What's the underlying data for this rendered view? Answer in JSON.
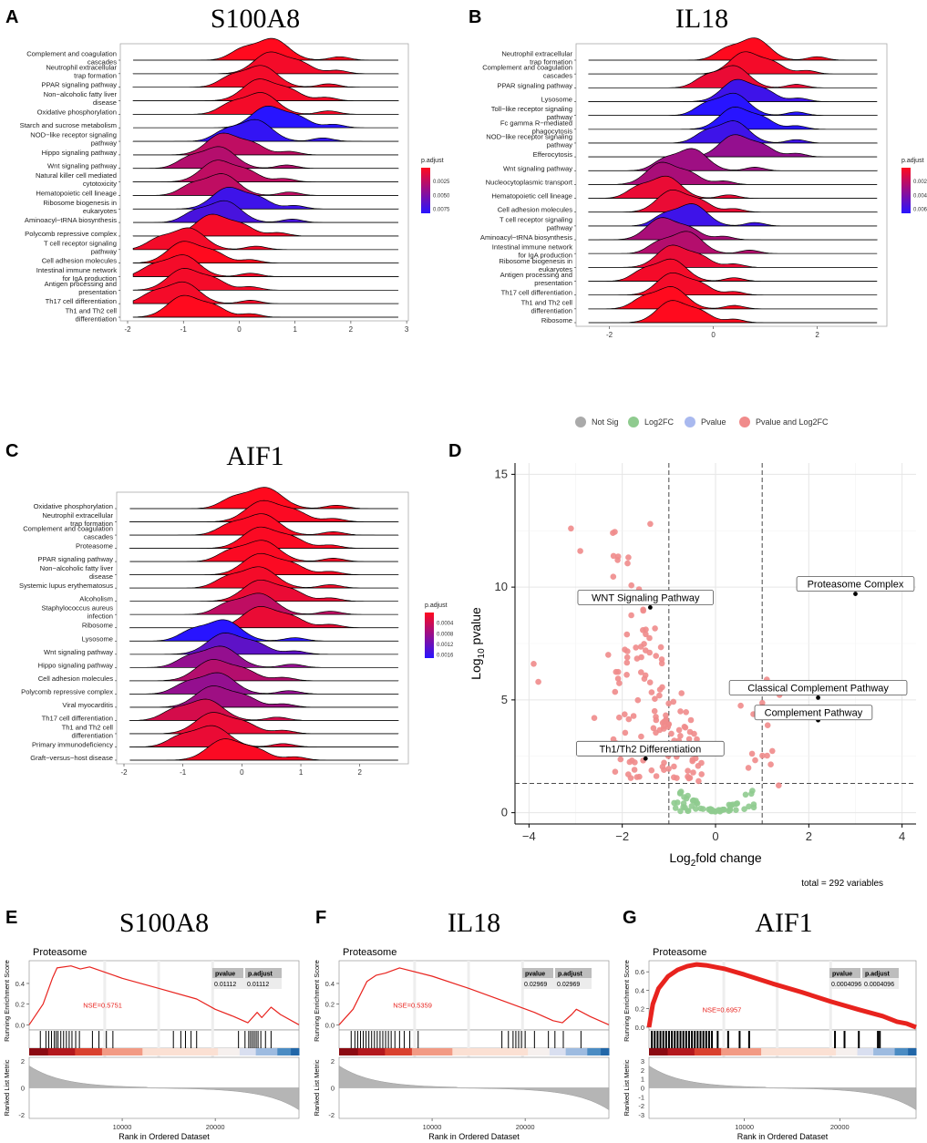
{
  "figure": {
    "panels": [
      {
        "id": "A",
        "label": "A",
        "title": "S100A8"
      },
      {
        "id": "B",
        "label": "B",
        "title": "IL18"
      },
      {
        "id": "C",
        "label": "C",
        "title": "AIF1"
      },
      {
        "id": "D",
        "label": "D",
        "title": ""
      },
      {
        "id": "E",
        "label": "E",
        "title": "S100A8"
      },
      {
        "id": "F",
        "label": "F",
        "title": "IL18"
      },
      {
        "id": "G",
        "label": "G",
        "title": "AIF1"
      }
    ]
  },
  "chart_data": [
    {
      "id": "A",
      "type": "ridgeline",
      "title": "S100A8",
      "xticks": [
        -2,
        -1,
        0,
        1,
        2,
        3
      ],
      "xlim": [
        -2,
        2.9
      ],
      "legend": {
        "title": "p.adjust",
        "ticks": [
          "0.0025",
          "0.0050",
          "0.0075"
        ]
      },
      "categories": [
        "Complement and coagulation\ncascades",
        "Neutrophil extracellular\ntrap formation",
        "PPAR signaling pathway",
        "Non−alcoholic fatty liver\ndisease",
        "Oxidative phosphorylation",
        "Starch and sucrose metabolism",
        "NOD−like receptor signaling\npathway",
        "Hippo signaling pathway",
        "Wnt signaling pathway",
        "Natural killer cell mediated\ncytotoxicity",
        "Hematopoietic cell lineage",
        "Ribosome biogenesis in\neukaryotes",
        "Aminoacyl−tRNA biosynthesis",
        "Polycomb repressive complex",
        "T cell receptor signaling\npathway",
        "Cell adhesion molecules",
        "Intestinal immune network\nfor IgA production",
        "Antigen processing and\npresentation",
        "Th17 cell differentiation",
        "Th1 and Th2 cell\ndifferentiation"
      ],
      "peaks": [
        0.6,
        0.55,
        0.4,
        0.35,
        0.4,
        0.5,
        0.3,
        -0.3,
        -0.35,
        -0.4,
        -0.3,
        -0.2,
        -0.25,
        -0.5,
        -0.9,
        -1.0,
        -1.0,
        -1.0,
        -1.0,
        -1.0
      ],
      "pcolor": [
        0.0,
        0.05,
        0.05,
        0.05,
        0.05,
        1.0,
        0.95,
        0.3,
        0.35,
        0.3,
        0.3,
        0.9,
        0.85,
        0.05,
        0.05,
        0.0,
        0.05,
        0.05,
        0.05,
        0.0
      ]
    },
    {
      "id": "B",
      "type": "ridgeline",
      "title": "IL18",
      "xticks": [
        -2,
        0,
        2
      ],
      "xlim": [
        -2.5,
        3.2
      ],
      "legend": {
        "title": "p.adjust",
        "ticks": [
          "0.002",
          "0.004",
          "0.006"
        ]
      },
      "categories": [
        "Neutrophil extracellular\ntrap formation",
        "Complement and coagulation\ncascades",
        "PPAR signaling pathway",
        "Lysosome",
        "Toll−like receptor signaling\npathway",
        "Fc gamma R−mediated\nphagocytosis",
        "NOD−like receptor signaling\npathway",
        "Efferocytosis",
        "Wnt signaling pathway",
        "Nucleocytoplasmic transport",
        "Hematopoietic cell lineage",
        "Cell adhesion molecules",
        "T cell receptor signaling\npathway",
        "Aminoacyl−tRNA biosynthesis",
        "Intestinal immune network\nfor IgA production",
        "Ribosome biogenesis in\neukaryotes",
        "Antigen processing and\npresentation",
        "Th17 cell differentiation",
        "Th1 and Th2 cell\ndifferentiation",
        "Ribosome"
      ],
      "peaks": [
        0.8,
        0.6,
        0.4,
        0.45,
        0.4,
        0.4,
        0.4,
        0.4,
        -0.4,
        -1.0,
        -0.9,
        -0.8,
        -0.4,
        -1.0,
        -0.5,
        -0.8,
        -0.8,
        -0.8,
        -0.8,
        -0.8
      ],
      "pcolor": [
        0.0,
        0.05,
        0.1,
        0.9,
        1.0,
        1.0,
        0.9,
        0.5,
        0.45,
        0.4,
        0.1,
        0.1,
        0.9,
        0.4,
        0.35,
        0.1,
        0.05,
        0.05,
        0.0,
        0.0
      ]
    },
    {
      "id": "C",
      "type": "ridgeline",
      "title": "AIF1",
      "xticks": [
        -2,
        -1,
        0,
        1,
        2
      ],
      "xlim": [
        -2,
        2.7
      ],
      "legend": {
        "title": "p.adjust",
        "ticks": [
          "0.0004",
          "0.0008",
          "0.0012",
          "0.0016"
        ]
      },
      "categories": [
        "Oxidative phosphorylation",
        "Neutrophil extracellular\ntrap formation",
        "Complement and coagulation\ncascades",
        "Proteasome",
        "PPAR signaling pathway",
        "Non−alcoholic fatty liver\ndisease",
        "Systemic lupus erythematosus",
        "Alcoholism",
        "Staphylococcus aureus\ninfection",
        "Ribosome",
        "Lysosome",
        "Wnt signaling pathway",
        "Hippo signaling pathway",
        "Cell adhesion molecules",
        "Polycomb repressive complex",
        "Viral myocarditis",
        "Th17 cell differentiation",
        "Th1 and Th2 cell\ndifferentiation",
        "Primary immunodeficiency",
        "Graft−versus−host disease"
      ],
      "peaks": [
        0.4,
        0.35,
        0.35,
        0.3,
        0.35,
        0.3,
        0.3,
        0.3,
        0.3,
        0.3,
        -0.3,
        -0.3,
        -0.35,
        -0.5,
        -0.4,
        -0.5,
        -0.6,
        -0.5,
        -0.5,
        -0.3
      ],
      "pcolor": [
        0.0,
        0.02,
        0.02,
        0.02,
        0.02,
        0.02,
        0.05,
        0.1,
        0.3,
        0.1,
        1.0,
        0.75,
        0.5,
        0.35,
        0.5,
        0.45,
        0.2,
        0.1,
        0.1,
        0.02
      ]
    },
    {
      "id": "D",
      "type": "scatter",
      "title": "",
      "xlabel": "Log2fold change",
      "ylabel": "Log10 pvalue",
      "xlabel_parts": [
        "Log",
        "2",
        "fold change"
      ],
      "ylabel_parts": [
        "Log",
        "10",
        " pvalue"
      ],
      "xticks": [
        -4,
        -2,
        0,
        2,
        4
      ],
      "yticks": [
        0,
        5,
        10,
        15
      ],
      "xlim": [
        -4.3,
        4.3
      ],
      "ylim": [
        -0.5,
        15.5
      ],
      "vlines": [
        -1,
        1
      ],
      "hline": 1.3,
      "legend": [
        {
          "name": "Not Sig",
          "color": "#aaaaaa"
        },
        {
          "name": "Log2FC",
          "color": "#8fcb8f"
        },
        {
          "name": "Pvalue",
          "color": "#a9b9ef"
        },
        {
          "name": "Pvalue and Log2FC",
          "color": "#f08b8b"
        }
      ],
      "labels": [
        {
          "text": "WNT Signaling Pathway",
          "x": -1.4,
          "y": 9.1,
          "lx": -1.5,
          "ly": 9.5
        },
        {
          "text": "Proteasome Complex",
          "x": 3.0,
          "y": 9.7,
          "lx": 3.0,
          "ly": 10.1
        },
        {
          "text": "Classical Complement Pathway",
          "x": 2.2,
          "y": 5.1,
          "lx": 2.2,
          "ly": 5.5
        },
        {
          "text": "Complement Pathway",
          "x": 2.2,
          "y": 4.1,
          "lx": 2.1,
          "ly": 4.4
        },
        {
          "text": "Th1/Th2 Differentiation",
          "x": -1.5,
          "y": 2.4,
          "lx": -1.4,
          "ly": 2.8
        }
      ],
      "total": "total = 292 variables"
    },
    {
      "id": "E",
      "type": "gsea",
      "title": "S100A8",
      "term": "Proteasome",
      "nse": "NSE=0.5751",
      "pvalue": "0.01112",
      "padjust": "0.01112",
      "ylabel_top": "Running Enrichment Score",
      "ylabel_bottom": "Ranked List Metric",
      "xlabel": "Rank in Ordered Dataset",
      "yticks_top": [
        0.0,
        0.2,
        0.4
      ],
      "ylim_top": [
        -0.05,
        0.62
      ],
      "yticks_bottom": [
        2,
        0,
        -2
      ],
      "xticks": [
        10000,
        20000
      ],
      "xlim": [
        0,
        29000
      ],
      "curve": [
        [
          0,
          0
        ],
        [
          1500,
          0.2
        ],
        [
          2500,
          0.45
        ],
        [
          3000,
          0.55
        ],
        [
          4500,
          0.57
        ],
        [
          5500,
          0.54
        ],
        [
          6500,
          0.56
        ],
        [
          10000,
          0.45
        ],
        [
          14000,
          0.35
        ],
        [
          18000,
          0.25
        ],
        [
          20000,
          0.15
        ],
        [
          22000,
          0.08
        ],
        [
          23500,
          0.02
        ],
        [
          24500,
          0.12
        ],
        [
          25000,
          0.07
        ],
        [
          26000,
          0.17
        ],
        [
          27000,
          0.1
        ],
        [
          29000,
          0.0
        ]
      ],
      "hits": [
        1200,
        1800,
        2100,
        2400,
        2700,
        2900,
        3100,
        3400,
        3700,
        4000,
        4300,
        4600,
        5000,
        5400,
        6800,
        7500,
        8300,
        9000,
        15500,
        16300,
        16800,
        17400,
        18000,
        22500,
        23200,
        23600,
        23800,
        24000,
        24200,
        24400,
        24600,
        24900,
        25400,
        26000
      ],
      "stroke": 1.2
    },
    {
      "id": "F",
      "type": "gsea",
      "title": "IL18",
      "term": "Proteasome",
      "nse": "NSE=0.5359",
      "pvalue": "0.02969",
      "padjust": "0.02969",
      "ylabel_top": "Running Enrichment Score",
      "ylabel_bottom": "Ranked List Metric",
      "xlabel": "Rank in Ordered Dataset",
      "yticks_top": [
        0.0,
        0.2,
        0.4
      ],
      "ylim_top": [
        -0.05,
        0.62
      ],
      "yticks_bottom": [
        2,
        0,
        -2
      ],
      "xticks": [
        10000,
        20000
      ],
      "xlim": [
        0,
        29000
      ],
      "curve": [
        [
          0,
          0
        ],
        [
          1500,
          0.15
        ],
        [
          3000,
          0.42
        ],
        [
          4000,
          0.48
        ],
        [
          5000,
          0.5
        ],
        [
          6500,
          0.55
        ],
        [
          10000,
          0.47
        ],
        [
          14000,
          0.35
        ],
        [
          18000,
          0.22
        ],
        [
          21000,
          0.12
        ],
        [
          23000,
          0.04
        ],
        [
          24000,
          0.02
        ],
        [
          25000,
          0.1
        ],
        [
          25500,
          0.15
        ],
        [
          27000,
          0.08
        ],
        [
          29000,
          0.0
        ]
      ],
      "hits": [
        1300,
        1700,
        2000,
        2300,
        2600,
        2900,
        3200,
        3500,
        3800,
        4100,
        4400,
        4700,
        5000,
        5300,
        5600,
        6000,
        6500,
        7000,
        7600,
        8500,
        17500,
        18200,
        18700,
        19000,
        19300,
        19600,
        20000,
        21000,
        22500,
        23200,
        24100,
        26000
      ],
      "stroke": 1.2
    },
    {
      "id": "G",
      "type": "gsea",
      "title": "AIF1",
      "term": "Proteasome",
      "nse": "NSE=0.6957",
      "pvalue": "0.0004096",
      "padjust": "0.0004096",
      "ylabel_top": "Running Enrichment Score",
      "ylabel_bottom": "Ranked List Metric",
      "xlabel": "Rank in Ordered Dataset",
      "yticks_top": [
        0.0,
        0.2,
        0.4,
        0.6
      ],
      "ylim_top": [
        -0.03,
        0.72
      ],
      "yticks_bottom": [
        3,
        2,
        1,
        0,
        -1,
        -2,
        -3
      ],
      "xticks": [
        10000,
        20000
      ],
      "xlim": [
        0,
        28000
      ],
      "curve": [
        [
          0,
          0
        ],
        [
          400,
          0.25
        ],
        [
          1000,
          0.42
        ],
        [
          2000,
          0.55
        ],
        [
          3000,
          0.62
        ],
        [
          4000,
          0.66
        ],
        [
          5000,
          0.68
        ],
        [
          6000,
          0.67
        ],
        [
          8000,
          0.63
        ],
        [
          10000,
          0.57
        ],
        [
          13000,
          0.47
        ],
        [
          16000,
          0.38
        ],
        [
          19000,
          0.28
        ],
        [
          22000,
          0.19
        ],
        [
          24500,
          0.12
        ],
        [
          26000,
          0.06
        ],
        [
          27000,
          0.04
        ],
        [
          28000,
          0.0
        ]
      ],
      "hits": [
        300,
        600,
        900,
        1200,
        1500,
        1800,
        2100,
        2400,
        2700,
        3000,
        3300,
        3600,
        3900,
        4200,
        4500,
        4800,
        5100,
        5400,
        5700,
        6000,
        6300,
        6600,
        7200,
        8300,
        9500,
        10500,
        19500,
        20500,
        22000,
        24000,
        24200
      ],
      "stroke": 5
    }
  ]
}
